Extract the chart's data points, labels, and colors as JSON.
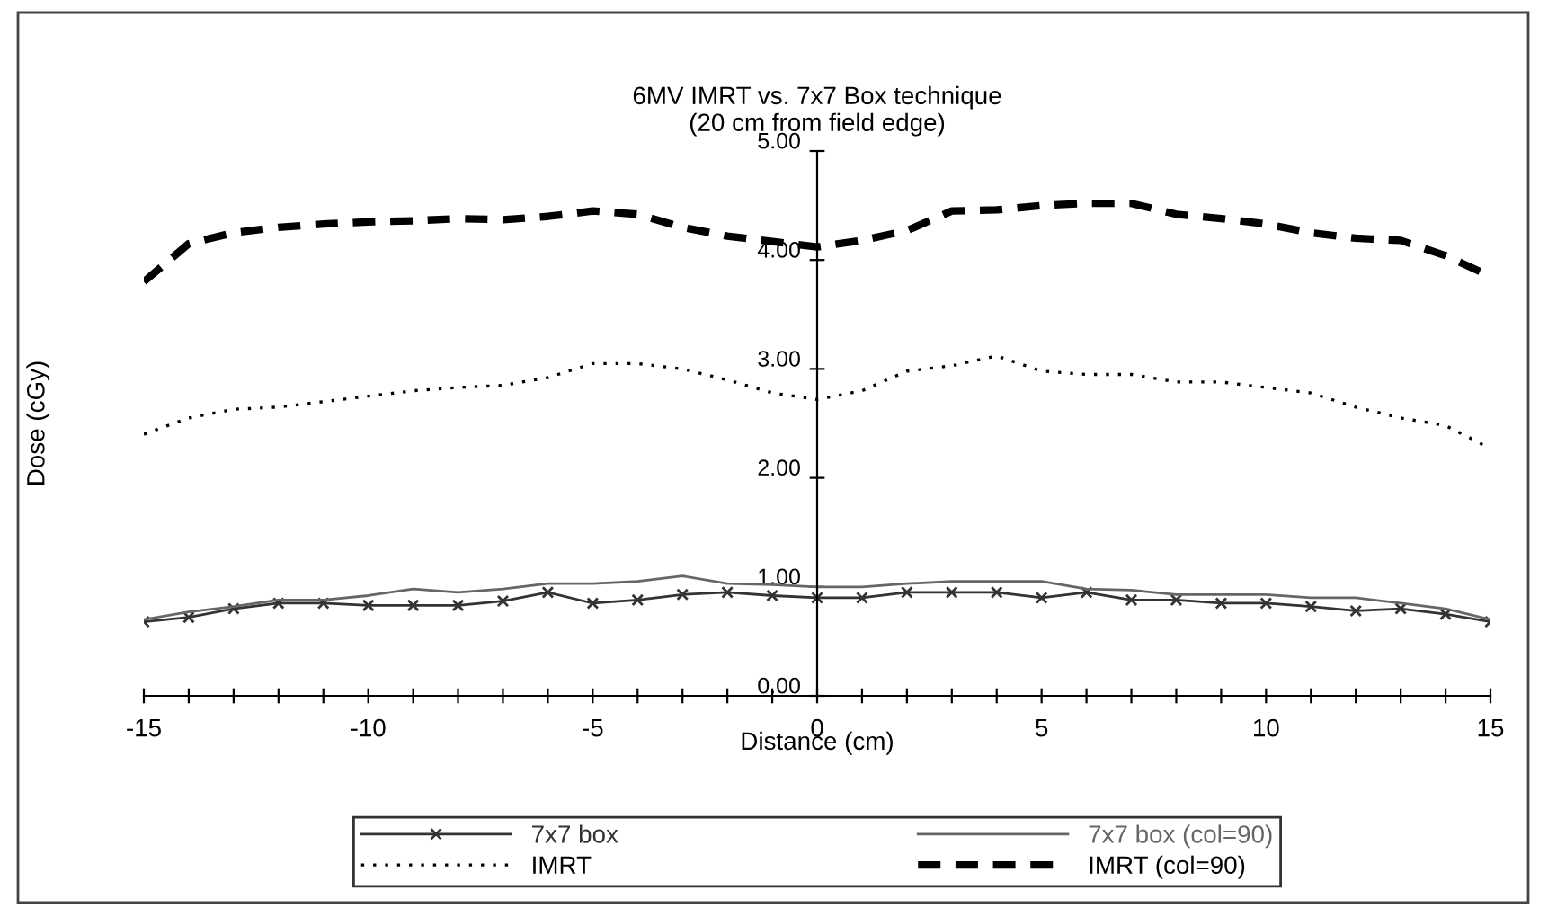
{
  "chart_data": {
    "type": "line",
    "title": "6MV IMRT vs. 7x7 Box technique\n(20 cm from field edge)",
    "xlabel": "Distance (cm)",
    "ylabel": "Dose (cGy)",
    "x": [
      -15,
      -14,
      -13,
      -12,
      -11,
      -10,
      -9,
      -8,
      -7,
      -6,
      -5,
      -4,
      -3,
      -2,
      -1,
      0,
      1,
      2,
      3,
      4,
      5,
      6,
      7,
      8,
      9,
      10,
      11,
      12,
      13,
      14,
      15
    ],
    "series": [
      {
        "name": "7x7 box",
        "color": "#333333",
        "marker": "cross",
        "line_style": "solid",
        "values": [
          0.68,
          0.72,
          0.8,
          0.85,
          0.85,
          0.83,
          0.83,
          0.83,
          0.87,
          0.95,
          0.85,
          0.88,
          0.93,
          0.95,
          0.92,
          0.9,
          0.9,
          0.95,
          0.95,
          0.95,
          0.9,
          0.95,
          0.88,
          0.88,
          0.85,
          0.85,
          0.82,
          0.78,
          0.8,
          0.75,
          0.68
        ]
      },
      {
        "name": "7x7 box (col=90)",
        "color": "#666666",
        "marker": "none",
        "line_style": "solid",
        "values": [
          0.7,
          0.77,
          0.82,
          0.88,
          0.88,
          0.92,
          0.98,
          0.95,
          0.98,
          1.03,
          1.03,
          1.05,
          1.1,
          1.03,
          1.02,
          1.0,
          1.0,
          1.03,
          1.05,
          1.05,
          1.05,
          0.98,
          0.97,
          0.93,
          0.93,
          0.93,
          0.9,
          0.9,
          0.85,
          0.8,
          0.7
        ]
      },
      {
        "name": "IMRT",
        "color": "#000000",
        "marker": "none",
        "line_style": "dotted",
        "values": [
          2.4,
          2.55,
          2.63,
          2.65,
          2.7,
          2.75,
          2.8,
          2.83,
          2.85,
          2.92,
          3.05,
          3.05,
          3.0,
          2.9,
          2.78,
          2.72,
          2.8,
          2.98,
          3.03,
          3.12,
          2.98,
          2.95,
          2.95,
          2.88,
          2.88,
          2.83,
          2.78,
          2.65,
          2.55,
          2.48,
          2.27
        ]
      },
      {
        "name": "IMRT (col=90)",
        "color": "#000000",
        "marker": "none",
        "line_style": "dashed",
        "values": [
          3.8,
          4.15,
          4.25,
          4.3,
          4.33,
          4.35,
          4.36,
          4.38,
          4.37,
          4.4,
          4.45,
          4.42,
          4.3,
          4.22,
          4.17,
          4.12,
          4.18,
          4.27,
          4.45,
          4.46,
          4.5,
          4.52,
          4.52,
          4.42,
          4.38,
          4.33,
          4.25,
          4.2,
          4.18,
          4.04,
          3.85
        ]
      }
    ],
    "xlim": [
      -15,
      15
    ],
    "xticks": [
      -15,
      {
        "value": -14,
        "label": null
      },
      {
        "value": -13,
        "label": null
      },
      {
        "value": -12,
        "label": null
      },
      {
        "value": -11,
        "label": null
      },
      -10,
      {
        "value": -9,
        "label": null
      },
      {
        "value": -8,
        "label": null
      },
      {
        "value": -7,
        "label": null
      },
      {
        "value": -6,
        "label": null
      },
      -5,
      {
        "value": -4,
        "label": null
      },
      {
        "value": -3,
        "label": null
      },
      {
        "value": -2,
        "label": null
      },
      {
        "value": -1,
        "label": null
      },
      0,
      {
        "value": 1,
        "label": null
      },
      {
        "value": 2,
        "label": null
      },
      {
        "value": 3,
        "label": null
      },
      {
        "value": 4,
        "label": null
      },
      5,
      {
        "value": 6,
        "label": null
      },
      {
        "value": 7,
        "label": null
      },
      {
        "value": 8,
        "label": null
      },
      {
        "value": 9,
        "label": null
      },
      10,
      {
        "value": 11,
        "label": null
      },
      {
        "value": 12,
        "label": null
      },
      {
        "value": 13,
        "label": null
      },
      {
        "value": 14,
        "label": null
      },
      15
    ],
    "ylim": [
      0,
      5
    ],
    "yticks": [
      {
        "value": 0,
        "label": "0.00"
      },
      {
        "value": 1,
        "label": "1.00"
      },
      {
        "value": 2,
        "label": "2.00"
      },
      {
        "value": 3,
        "label": "3.00"
      },
      {
        "value": 4,
        "label": "4.00"
      },
      {
        "value": 5,
        "label": "5.00"
      }
    ],
    "grid": false,
    "legend": "bottom"
  }
}
